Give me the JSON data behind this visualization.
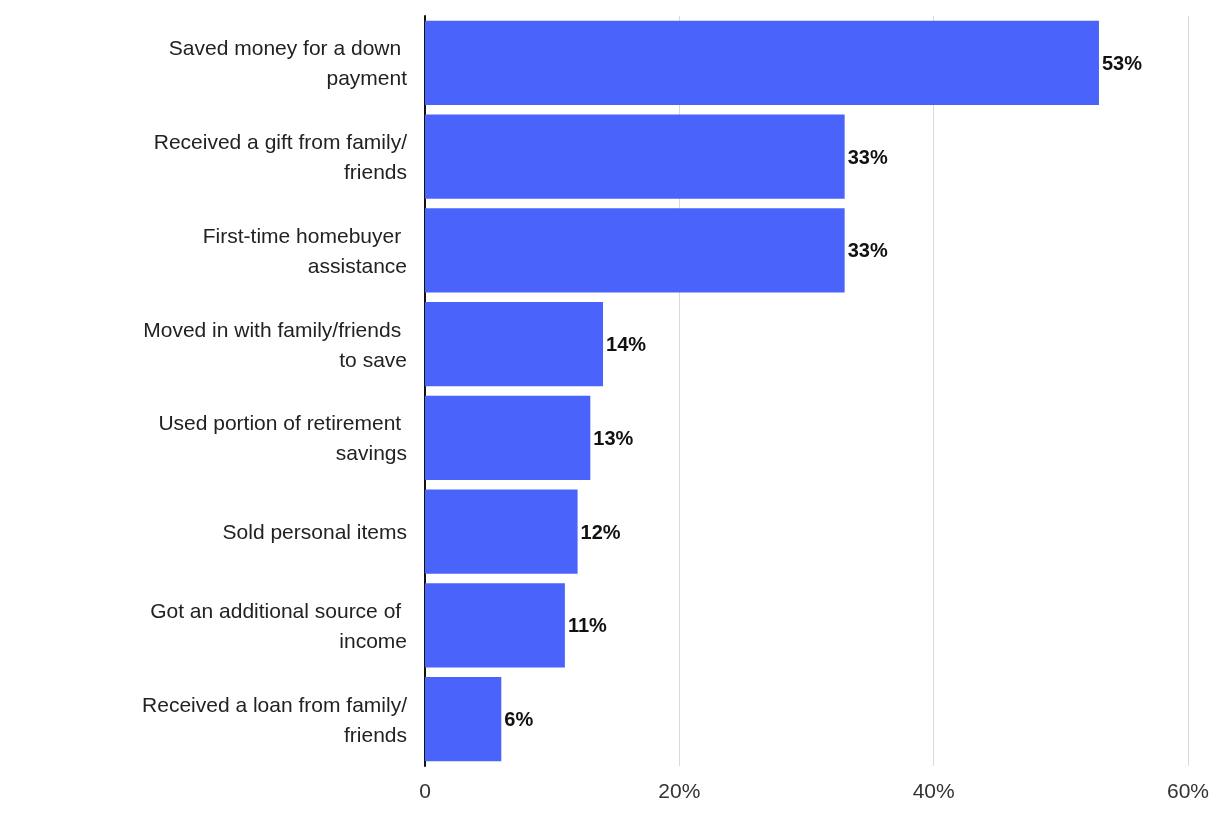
{
  "chart_data": {
    "type": "bar",
    "orientation": "horizontal",
    "categories": [
      "Saved money for a down payment",
      "Received a gift from family/friends",
      "First-time homebuyer assistance",
      "Moved in with family/friends to save",
      "Used portion of retirement savings",
      "Sold personal items",
      "Got an additional source of income",
      "Received a loan from family/friends"
    ],
    "values": [
      53,
      33,
      33,
      14,
      13,
      12,
      11,
      6
    ],
    "value_labels": [
      "53%",
      "33%",
      "33%",
      "14%",
      "13%",
      "12%",
      "11%",
      "6%"
    ],
    "color": "#4a64fb",
    "xlim": [
      0,
      60
    ],
    "xticks": [
      {
        "value": 0,
        "label": "0"
      },
      {
        "value": 20,
        "label": "20%"
      },
      {
        "value": 40,
        "label": "40%"
      },
      {
        "value": 60,
        "label": "60%"
      }
    ],
    "grid": "x"
  }
}
